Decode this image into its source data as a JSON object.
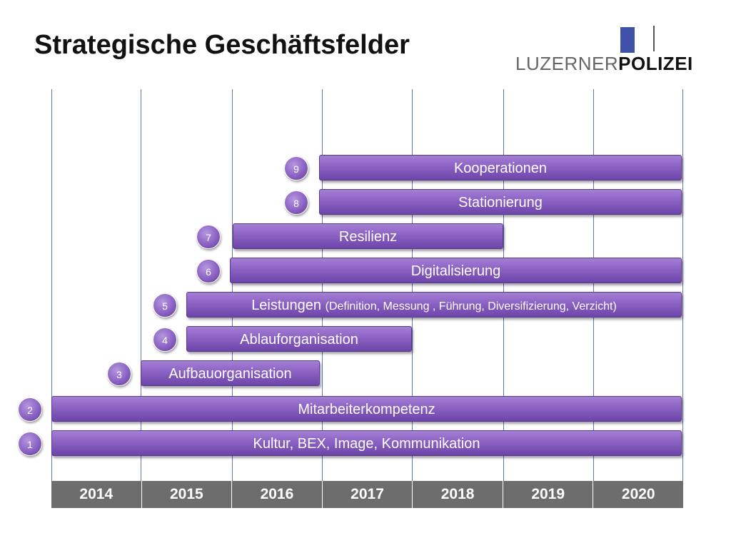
{
  "title": "Strategische Geschäftsfelder",
  "logo": {
    "part1": "LUZERNER",
    "part2": "POLIZEI"
  },
  "years": [
    "2014",
    "2015",
    "2016",
    "2017",
    "2018",
    "2019",
    "2020"
  ],
  "fields": [
    {
      "number": "9",
      "label": "Kooperationen",
      "sublabel": "",
      "start": "2017",
      "end": "2020"
    },
    {
      "number": "8",
      "label": "Stationierung",
      "sublabel": "",
      "start": "2017",
      "end": "2020"
    },
    {
      "number": "7",
      "label": "Resilienz",
      "sublabel": "",
      "start": "2016",
      "end": "2018"
    },
    {
      "number": "6",
      "label": "Digitalisierung",
      "sublabel": "",
      "start": "2016",
      "end": "2020"
    },
    {
      "number": "5",
      "label": "Leistungen",
      "sublabel": "(Definition, Messung , Führung, Diversifizierung, Verzicht)",
      "start": "2015",
      "end": "2020"
    },
    {
      "number": "4",
      "label": "Ablauforganisation",
      "sublabel": "",
      "start": "2015",
      "end": "2017"
    },
    {
      "number": "3",
      "label": "Aufbauorganisation",
      "sublabel": "",
      "start": "2015",
      "end": "2016"
    },
    {
      "number": "2",
      "label": "Mitarbeiterkompetenz",
      "sublabel": "",
      "start": "2014",
      "end": "2020"
    },
    {
      "number": "1",
      "label": "Kultur, BEX, Image, Kommunikation",
      "sublabel": "",
      "start": "2014",
      "end": "2020"
    }
  ]
}
